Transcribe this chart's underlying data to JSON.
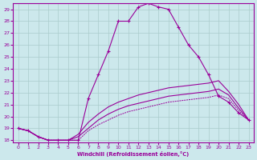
{
  "xlabel": "Windchill (Refroidissement éolien,°C)",
  "bg_color": "#cce8ec",
  "line_color": "#990099",
  "grid_color": "#aacccc",
  "xlim": [
    -0.5,
    23.5
  ],
  "ylim": [
    17.8,
    29.5
  ],
  "xticks": [
    0,
    1,
    2,
    3,
    4,
    5,
    6,
    7,
    8,
    9,
    10,
    11,
    12,
    13,
    14,
    15,
    16,
    17,
    18,
    19,
    20,
    21,
    22,
    23
  ],
  "yticks": [
    18,
    19,
    20,
    21,
    22,
    23,
    24,
    25,
    26,
    27,
    28,
    29
  ],
  "curve_main_x": [
    0,
    1,
    2,
    3,
    4,
    5,
    6,
    7,
    8,
    9,
    10,
    11,
    12,
    13,
    14,
    15,
    16,
    17,
    18,
    19,
    20,
    21,
    22,
    23
  ],
  "curve_main_y": [
    19.0,
    18.8,
    18.3,
    18.0,
    18.0,
    18.0,
    18.0,
    21.5,
    23.5,
    25.5,
    28.0,
    28.0,
    29.2,
    29.5,
    29.2,
    29.0,
    27.5,
    26.0,
    25.0,
    23.5,
    21.7,
    21.2,
    20.3,
    19.7
  ],
  "curve_dot_x": [
    0,
    1,
    2,
    3,
    4,
    5,
    6,
    7,
    8,
    9,
    10,
    11,
    12,
    13,
    14,
    15,
    16,
    17,
    18,
    19,
    20,
    21,
    22,
    23
  ],
  "curve_dot_y": [
    19.0,
    18.8,
    18.3,
    18.0,
    18.0,
    18.0,
    18.0,
    18.8,
    19.3,
    19.7,
    20.1,
    20.4,
    20.6,
    20.8,
    21.0,
    21.2,
    21.3,
    21.4,
    21.5,
    21.6,
    21.8,
    21.5,
    20.5,
    19.7
  ],
  "curve_hi_x": [
    0,
    1,
    2,
    3,
    4,
    5,
    6,
    7,
    8,
    9,
    10,
    11,
    12,
    13,
    14,
    15,
    16,
    17,
    18,
    19,
    20,
    21,
    22,
    23
  ],
  "curve_hi_y": [
    19.0,
    18.8,
    18.3,
    18.0,
    18.0,
    18.0,
    18.5,
    19.5,
    20.2,
    20.8,
    21.2,
    21.5,
    21.8,
    22.0,
    22.2,
    22.4,
    22.5,
    22.6,
    22.7,
    22.8,
    23.0,
    22.1,
    21.0,
    19.7
  ],
  "curve_mid_x": [
    0,
    1,
    2,
    3,
    4,
    5,
    6,
    7,
    8,
    9,
    10,
    11,
    12,
    13,
    14,
    15,
    16,
    17,
    18,
    19,
    20,
    21,
    22,
    23
  ],
  "curve_mid_y": [
    19.0,
    18.8,
    18.3,
    18.0,
    18.0,
    18.0,
    18.3,
    19.0,
    19.7,
    20.2,
    20.6,
    20.9,
    21.1,
    21.3,
    21.5,
    21.7,
    21.8,
    21.9,
    22.0,
    22.1,
    22.3,
    21.8,
    20.7,
    19.7
  ]
}
